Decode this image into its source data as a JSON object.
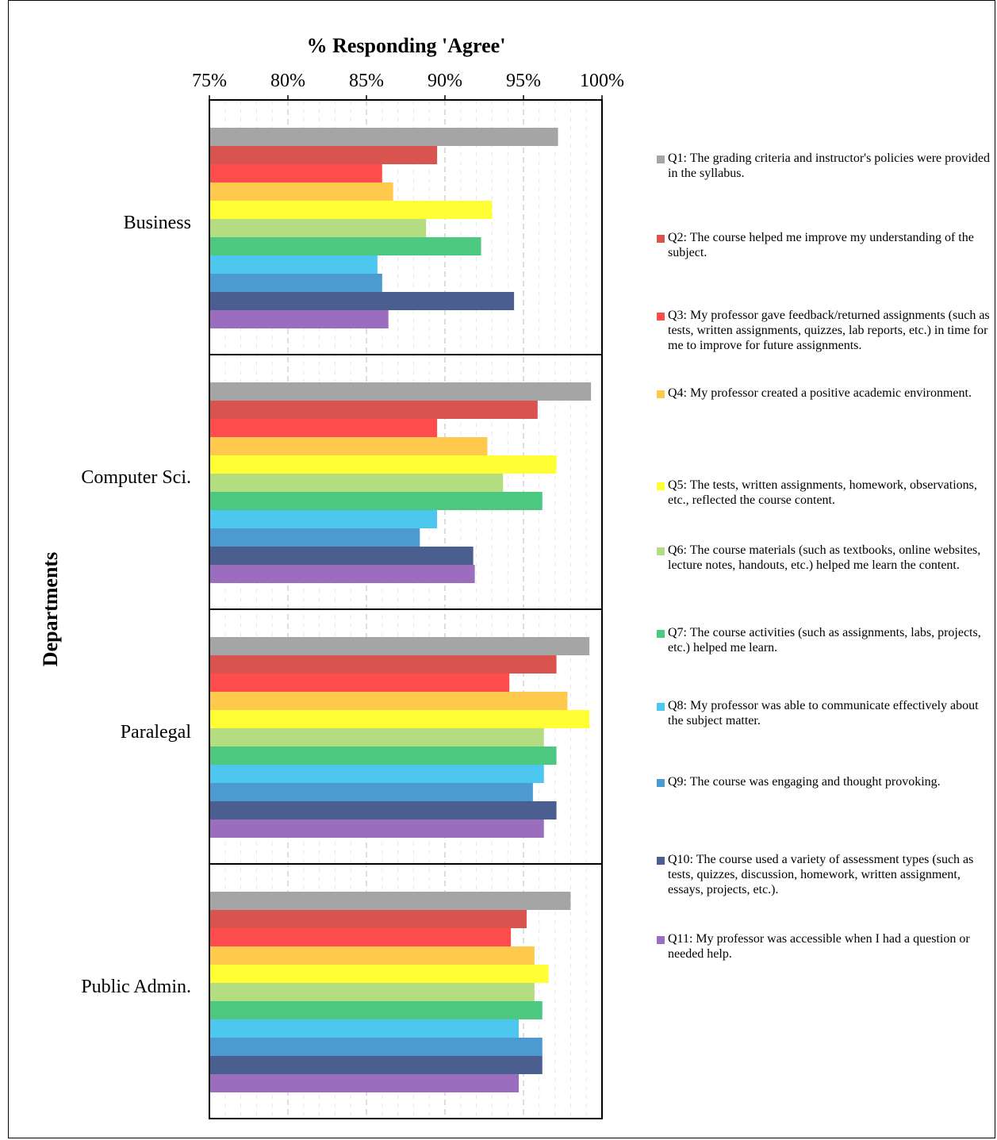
{
  "chart_data": {
    "type": "bar",
    "orientation": "horizontal",
    "title": "% Responding 'Agree'",
    "ylabel": "Departments",
    "xlim": [
      75,
      100
    ],
    "x_ticks": [
      "75%",
      "80%",
      "85%",
      "90%",
      "95%",
      "100%"
    ],
    "grid": "vertical dashed",
    "legend_position": "right",
    "categories": [
      "Business",
      "Computer Sci.",
      "Paralegal",
      "Public Admin."
    ],
    "series": [
      {
        "name": "Q1: The grading criteria and instructor's policies were provided in the syllabus.",
        "color": "#A5A5A5",
        "values": [
          97.2,
          99.3,
          99.2,
          98.0
        ]
      },
      {
        "name": "Q2:  The course helped me improve my understanding of the subject.",
        "color": "#D9534F",
        "values": [
          89.5,
          95.9,
          97.1,
          95.2
        ]
      },
      {
        "name": "Q3:  My professor gave feedback/returned assignments (such as tests, written assignments, quizzes, lab reports, etc.) in time for me to improve for future assignments.",
        "color": "#FF4D4D",
        "values": [
          86.0,
          89.5,
          94.1,
          94.2
        ]
      },
      {
        "name": "Q4:  My professor created a positive academic environment.",
        "color": "#FFC94D",
        "values": [
          86.7,
          92.7,
          97.8,
          95.7
        ]
      },
      {
        "name": "Q5:  The tests, written assignments, homework, observations, etc., reflected the course content.",
        "color": "#FFFF33",
        "values": [
          93.0,
          97.1,
          99.2,
          96.6
        ]
      },
      {
        "name": "Q6:  The course materials (such as textbooks, online websites, lecture notes, handouts, etc.) helped me learn the content.",
        "color": "#B3DD80",
        "values": [
          88.8,
          93.7,
          96.3,
          95.7
        ]
      },
      {
        "name": "Q7:  The course activities (such as assignments, labs, projects, etc.) helped me learn.",
        "color": "#4DC880",
        "values": [
          92.3,
          96.2,
          97.1,
          96.2
        ]
      },
      {
        "name": "Q8:  My professor was able to communicate effectively about the subject matter.",
        "color": "#4DC6F0",
        "values": [
          85.7,
          89.5,
          96.3,
          94.7
        ]
      },
      {
        "name": "Q9:  The course was engaging and thought provoking.",
        "color": "#4D99D2",
        "values": [
          86.0,
          88.4,
          95.6,
          96.2
        ]
      },
      {
        "name": "Q10: The course used a variety of assessment types (such as tests, quizzes, discussion, homework, written assignment, essays, projects, etc.).",
        "color": "#4A5E90",
        "values": [
          94.4,
          91.8,
          97.1,
          96.2
        ]
      },
      {
        "name": "Q11:  My professor was accessible when I had a question or needed help.",
        "color": "#9B6DBF",
        "values": [
          86.4,
          91.9,
          96.3,
          94.7
        ]
      }
    ]
  }
}
